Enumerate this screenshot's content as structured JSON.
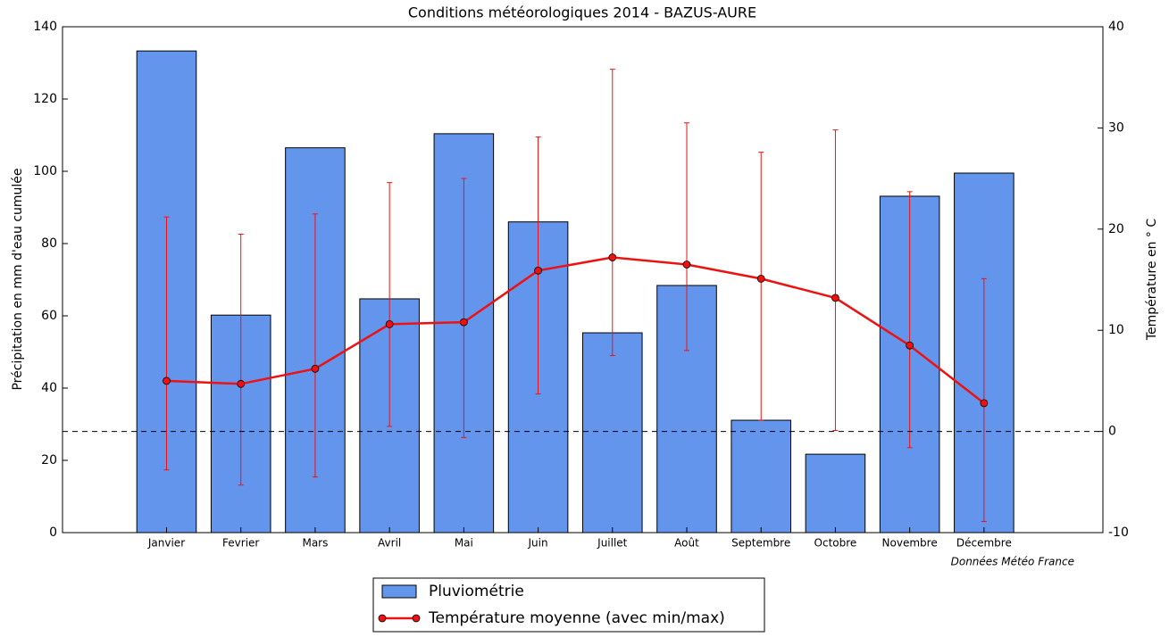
{
  "chart_data": {
    "type": "bar-line",
    "title": "Conditions météorologiques 2014 - BAZUS-AURE",
    "y_label": "Précipitation en mm d'eau cumulée",
    "y2_label": "Température en ° C",
    "annotation": "Données Météo France",
    "categories": [
      "Janvier",
      "Fevrier",
      "Mars",
      "Avril",
      "Mai",
      "Juin",
      "Juillet",
      "Août",
      "Septembre",
      "Octobre",
      "Novembre",
      "Décembre"
    ],
    "ylim": [
      0,
      140
    ],
    "yticks": [
      0,
      20,
      40,
      60,
      80,
      100,
      120,
      140
    ],
    "y2lim": [
      -10,
      40
    ],
    "y2ticks": [
      -10,
      0,
      10,
      20,
      30,
      40
    ],
    "reference_line": {
      "value": 0,
      "axis": "y2"
    },
    "legend": "bottom",
    "series": [
      {
        "name": "Pluviométrie",
        "type": "bar",
        "color": "#6495ed",
        "values": [
          133.3,
          60.2,
          106.5,
          64.7,
          110.4,
          86.0,
          55.3,
          68.4,
          31.1,
          21.7,
          93.1,
          99.5
        ]
      },
      {
        "name": "Température moyenne (avec min/max)",
        "type": "line",
        "axis": "y2",
        "color": "#ee1111",
        "values": [
          5.0,
          4.7,
          6.2,
          10.6,
          10.8,
          15.9,
          17.2,
          16.5,
          15.1,
          13.2,
          8.5,
          2.8
        ],
        "min": [
          -3.8,
          -5.3,
          -4.5,
          0.5,
          -0.6,
          3.7,
          7.5,
          8.0,
          1.1,
          0.1,
          -1.6,
          -8.9
        ],
        "max": [
          21.2,
          19.5,
          21.5,
          24.6,
          25.0,
          29.1,
          35.8,
          30.5,
          27.6,
          29.8,
          23.7,
          15.1
        ]
      }
    ]
  }
}
